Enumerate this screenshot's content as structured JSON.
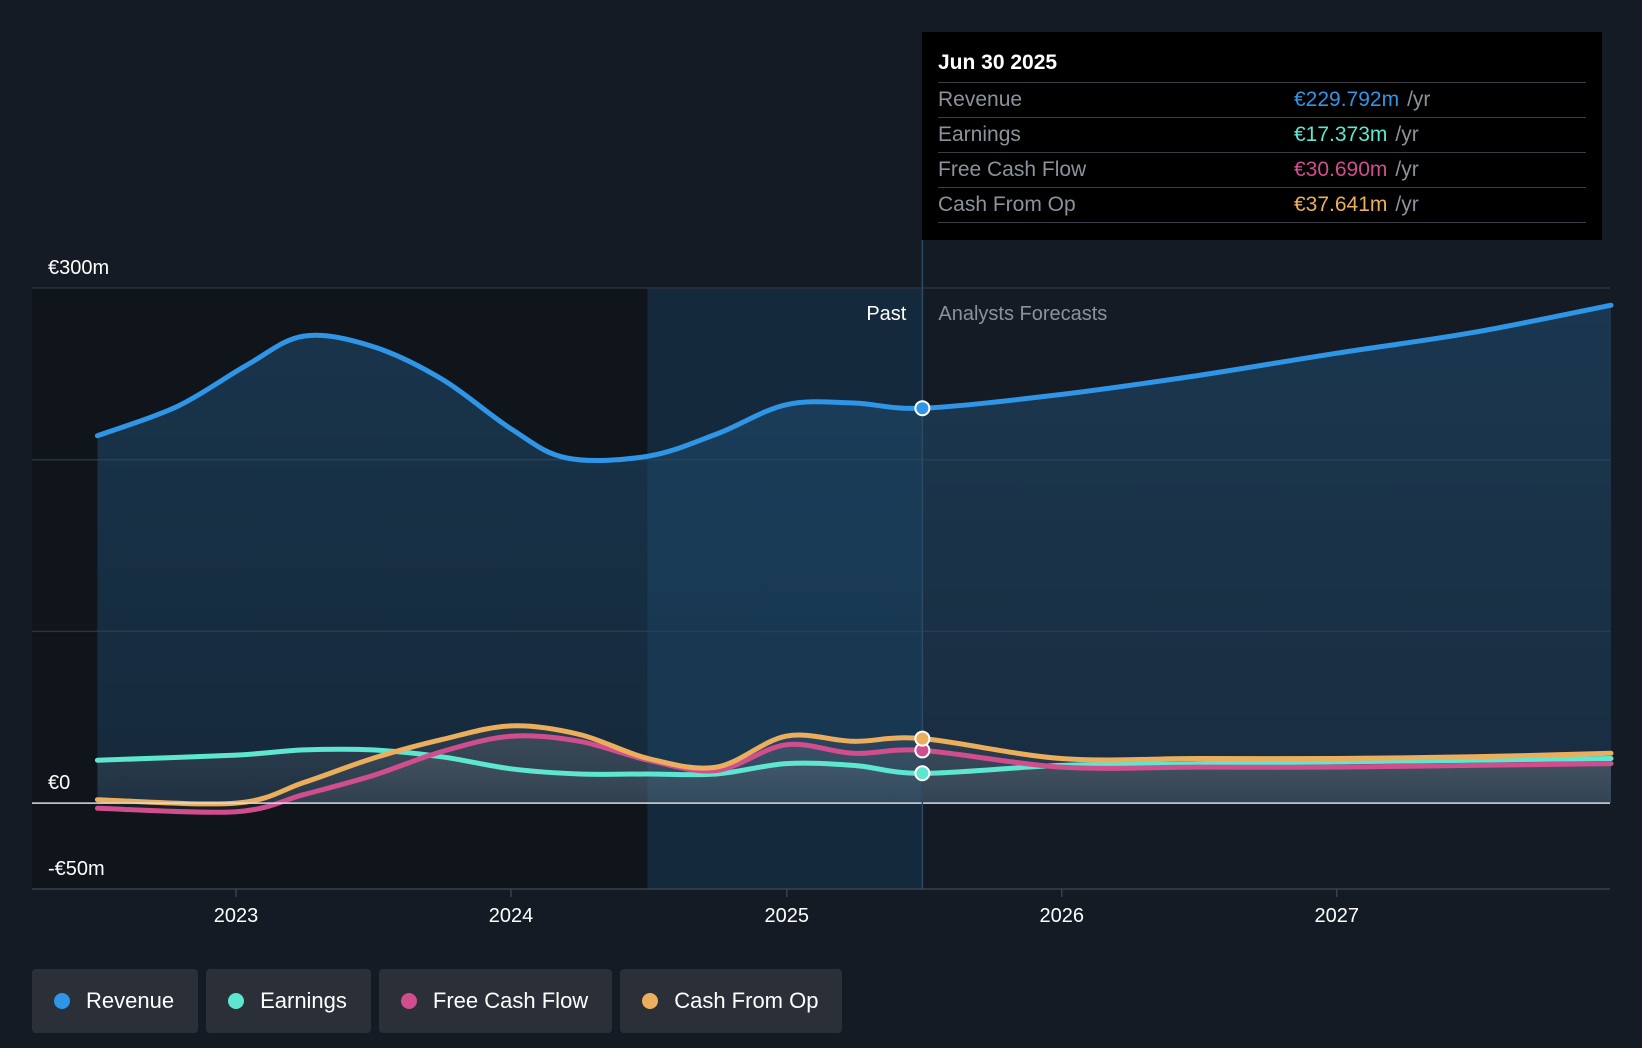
{
  "chart_data": {
    "type": "line",
    "x_ticks": [
      "2023",
      "2024",
      "2025",
      "2026",
      "2027"
    ],
    "y_ticks": [
      {
        "value": 300,
        "label": "€300m"
      },
      {
        "value": 0,
        "label": "€0"
      },
      {
        "value": -50,
        "label": "-€50m"
      }
    ],
    "ylim": [
      -50,
      300
    ],
    "xlim": [
      "2022-07",
      "2027-12"
    ],
    "grid": "horizontal",
    "legend_position": "bottom-left",
    "regions": {
      "past_label": "Past",
      "forecast_label": "Analysts Forecasts",
      "divider_date": "2025-06-30",
      "highlight_start": "2024-06-30"
    },
    "series": [
      {
        "name": "Revenue",
        "color": "#2f95e6",
        "points": [
          [
            "2022-07-01",
            214
          ],
          [
            "2022-10-15",
            231
          ],
          [
            "2023-01-15",
            255
          ],
          [
            "2023-04-01",
            272
          ],
          [
            "2023-07-01",
            266
          ],
          [
            "2023-10-01",
            247
          ],
          [
            "2024-01-01",
            218
          ],
          [
            "2024-03-15",
            201
          ],
          [
            "2024-06-30",
            202
          ],
          [
            "2024-09-30",
            215
          ],
          [
            "2024-12-31",
            232
          ],
          [
            "2025-03-31",
            233
          ],
          [
            "2025-06-30",
            230
          ],
          [
            "2025-12-31",
            238
          ],
          [
            "2026-06-30",
            249
          ],
          [
            "2026-12-31",
            262
          ],
          [
            "2027-06-30",
            274
          ],
          [
            "2027-12-31",
            290
          ]
        ]
      },
      {
        "name": "Earnings",
        "color": "#5ee6d0",
        "points": [
          [
            "2022-07-01",
            25
          ],
          [
            "2023-01-01",
            28
          ],
          [
            "2023-04-01",
            31
          ],
          [
            "2023-07-01",
            31
          ],
          [
            "2023-10-01",
            27
          ],
          [
            "2024-01-01",
            20
          ],
          [
            "2024-04-01",
            17
          ],
          [
            "2024-06-30",
            17
          ],
          [
            "2024-09-30",
            17
          ],
          [
            "2024-12-31",
            23
          ],
          [
            "2025-03-31",
            22
          ],
          [
            "2025-06-30",
            17.4
          ],
          [
            "2025-12-31",
            22
          ],
          [
            "2026-06-30",
            23
          ],
          [
            "2026-12-31",
            24
          ],
          [
            "2027-06-30",
            25
          ],
          [
            "2027-12-31",
            26
          ]
        ]
      },
      {
        "name": "Free Cash Flow",
        "color": "#d04d8e",
        "points": [
          [
            "2022-07-01",
            -3
          ],
          [
            "2023-01-01",
            -5
          ],
          [
            "2023-04-01",
            5
          ],
          [
            "2023-07-01",
            16
          ],
          [
            "2023-10-01",
            30
          ],
          [
            "2024-01-01",
            39
          ],
          [
            "2024-04-01",
            36
          ],
          [
            "2024-07-01",
            25
          ],
          [
            "2024-09-30",
            19
          ],
          [
            "2024-12-31",
            34
          ],
          [
            "2025-03-31",
            29
          ],
          [
            "2025-06-30",
            30.7
          ],
          [
            "2025-12-31",
            21
          ],
          [
            "2026-06-30",
            21
          ],
          [
            "2026-12-31",
            21
          ],
          [
            "2027-06-30",
            22
          ],
          [
            "2027-12-31",
            23
          ]
        ]
      },
      {
        "name": "Cash From Op",
        "color": "#eaae5c",
        "points": [
          [
            "2022-07-01",
            2
          ],
          [
            "2023-01-01",
            0
          ],
          [
            "2023-04-01",
            12
          ],
          [
            "2023-07-01",
            26
          ],
          [
            "2023-10-01",
            37
          ],
          [
            "2024-01-01",
            45
          ],
          [
            "2024-04-01",
            40
          ],
          [
            "2024-07-01",
            26
          ],
          [
            "2024-09-30",
            21
          ],
          [
            "2024-12-31",
            39
          ],
          [
            "2025-03-31",
            36
          ],
          [
            "2025-06-30",
            37.6
          ],
          [
            "2025-12-31",
            26
          ],
          [
            "2026-06-30",
            26
          ],
          [
            "2026-12-31",
            26
          ],
          [
            "2027-06-30",
            27
          ],
          [
            "2027-12-31",
            29
          ]
        ]
      }
    ]
  },
  "tooltip": {
    "date": "Jun 30 2025",
    "rows": [
      {
        "label": "Revenue",
        "value": "€229.792m",
        "unit": "/yr",
        "color": "#2f95e6"
      },
      {
        "label": "Earnings",
        "value": "€17.373m",
        "unit": "/yr",
        "color": "#5ee6d0"
      },
      {
        "label": "Free Cash Flow",
        "value": "€30.690m",
        "unit": "/yr",
        "color": "#d04d8e"
      },
      {
        "label": "Cash From Op",
        "value": "€37.641m",
        "unit": "/yr",
        "color": "#eaae5c"
      }
    ]
  },
  "legend": [
    {
      "label": "Revenue",
      "color": "#2f95e6"
    },
    {
      "label": "Earnings",
      "color": "#5ee6d0"
    },
    {
      "label": "Free Cash Flow",
      "color": "#d04d8e"
    },
    {
      "label": "Cash From Op",
      "color": "#eaae5c"
    }
  ]
}
